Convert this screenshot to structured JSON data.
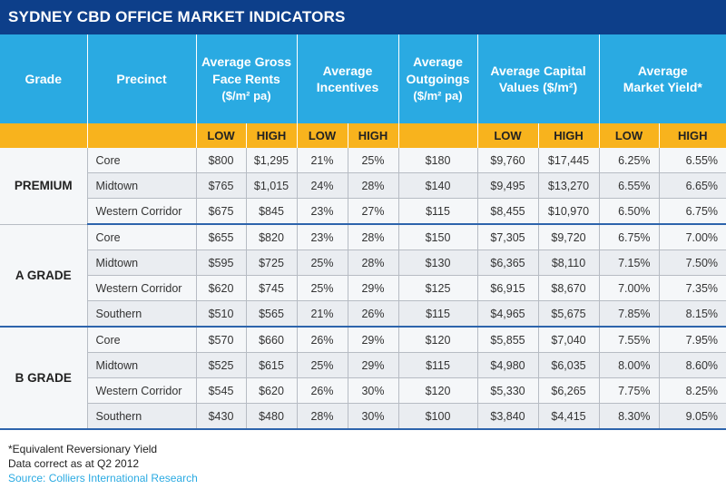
{
  "title": "SYDNEY CBD OFFICE MARKET INDICATORS",
  "headers": {
    "grade": "Grade",
    "precinct": "Precinct",
    "rents_line1": "Average Gross",
    "rents_line2": "Face Rents",
    "rents_unit": "($/m² pa)",
    "incentives_line1": "Average",
    "incentives_line2": "Incentives",
    "outgoings_line1": "Average",
    "outgoings_line2": "Outgoings",
    "outgoings_unit": "($/m² pa)",
    "capital_line1": "Average Capital",
    "capital_line2": "Values ($/m²)",
    "yield_line1": "Average",
    "yield_line2": "Market Yield*"
  },
  "sub": {
    "low": "LOW",
    "high": "HIGH"
  },
  "rows": [
    {
      "grade": "PREMIUM",
      "precinct": "Core",
      "rent_low": "$800",
      "rent_high": "$1,295",
      "inc_low": "21%",
      "inc_high": "25%",
      "outgoings": "$180",
      "cap_low": "$9,760",
      "cap_high": "$17,445",
      "yield_low": "6.25%",
      "yield_high": "6.55%"
    },
    {
      "grade": "",
      "precinct": "Midtown",
      "rent_low": "$765",
      "rent_high": "$1,015",
      "inc_low": "24%",
      "inc_high": "28%",
      "outgoings": "$140",
      "cap_low": "$9,495",
      "cap_high": "$13,270",
      "yield_low": "6.55%",
      "yield_high": "6.65%"
    },
    {
      "grade": "",
      "precinct": "Western Corridor",
      "rent_low": "$675",
      "rent_high": "$845",
      "inc_low": "23%",
      "inc_high": "27%",
      "outgoings": "$115",
      "cap_low": "$8,455",
      "cap_high": "$10,970",
      "yield_low": "6.50%",
      "yield_high": "6.75%"
    },
    {
      "grade": "A GRADE",
      "precinct": "Core",
      "rent_low": "$655",
      "rent_high": "$820",
      "inc_low": "23%",
      "inc_high": "28%",
      "outgoings": "$150",
      "cap_low": "$7,305",
      "cap_high": "$9,720",
      "yield_low": "6.75%",
      "yield_high": "7.00%"
    },
    {
      "grade": "",
      "precinct": "Midtown",
      "rent_low": "$595",
      "rent_high": "$725",
      "inc_low": "25%",
      "inc_high": "28%",
      "outgoings": "$130",
      "cap_low": "$6,365",
      "cap_high": "$8,110",
      "yield_low": "7.15%",
      "yield_high": "7.50%"
    },
    {
      "grade": "",
      "precinct": "Western Corridor",
      "rent_low": "$620",
      "rent_high": "$745",
      "inc_low": "25%",
      "inc_high": "29%",
      "outgoings": "$125",
      "cap_low": "$6,915",
      "cap_high": "$8,670",
      "yield_low": "7.00%",
      "yield_high": "7.35%"
    },
    {
      "grade": "",
      "precinct": "Southern",
      "rent_low": "$510",
      "rent_high": "$565",
      "inc_low": "21%",
      "inc_high": "26%",
      "outgoings": "$115",
      "cap_low": "$4,965",
      "cap_high": "$5,675",
      "yield_low": "7.85%",
      "yield_high": "8.15%"
    },
    {
      "grade": "B GRADE",
      "precinct": "Core",
      "rent_low": "$570",
      "rent_high": "$660",
      "inc_low": "26%",
      "inc_high": "29%",
      "outgoings": "$120",
      "cap_low": "$5,855",
      "cap_high": "$7,040",
      "yield_low": "7.55%",
      "yield_high": "7.95%"
    },
    {
      "grade": "",
      "precinct": "Midtown",
      "rent_low": "$525",
      "rent_high": "$615",
      "inc_low": "25%",
      "inc_high": "29%",
      "outgoings": "$115",
      "cap_low": "$4,980",
      "cap_high": "$6,035",
      "yield_low": "8.00%",
      "yield_high": "8.60%"
    },
    {
      "grade": "",
      "precinct": "Western Corridor",
      "rent_low": "$545",
      "rent_high": "$620",
      "inc_low": "26%",
      "inc_high": "30%",
      "outgoings": "$120",
      "cap_low": "$5,330",
      "cap_high": "$6,265",
      "yield_low": "7.75%",
      "yield_high": "8.25%"
    },
    {
      "grade": "",
      "precinct": "Southern",
      "rent_low": "$430",
      "rent_high": "$480",
      "inc_low": "28%",
      "inc_high": "30%",
      "outgoings": "$100",
      "cap_low": "$3,840",
      "cap_high": "$4,415",
      "yield_low": "8.30%",
      "yield_high": "9.05%"
    }
  ],
  "notes": {
    "line1": "*Equivalent Reversionary Yield",
    "line2": "Data correct as at Q2 2012",
    "source": "Source: Colliers International Research"
  }
}
